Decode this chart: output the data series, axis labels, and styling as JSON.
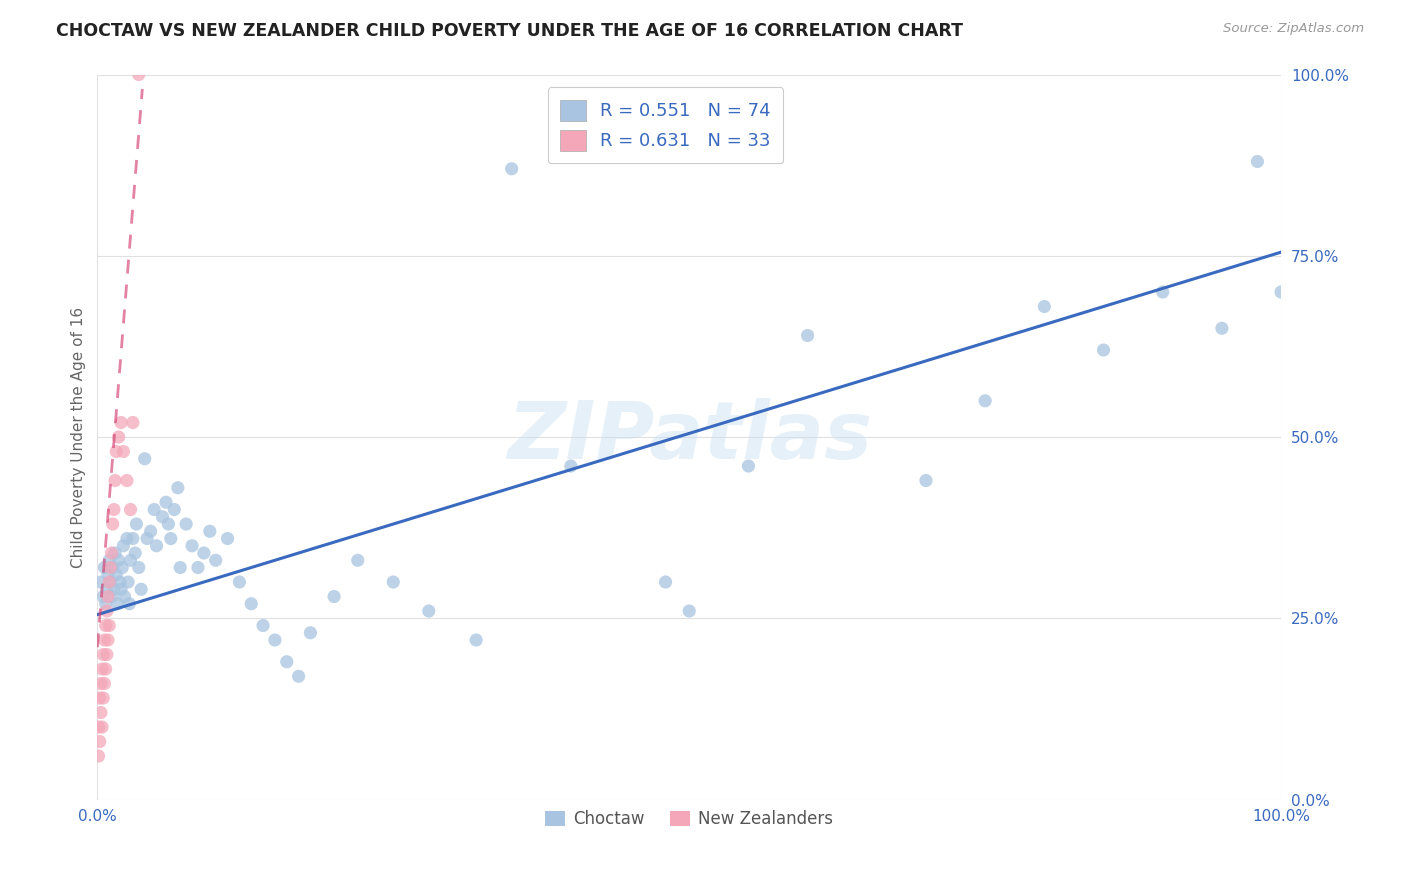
{
  "title": "CHOCTAW VS NEW ZEALANDER CHILD POVERTY UNDER THE AGE OF 16 CORRELATION CHART",
  "source": "Source: ZipAtlas.com",
  "ylabel": "Child Poverty Under the Age of 16",
  "watermark": "ZIPatlas",
  "choctaw_R": 0.551,
  "choctaw_N": 74,
  "nz_R": 0.631,
  "nz_N": 33,
  "choctaw_color": "#a8c4e0",
  "choctaw_line_color": "#3a6abf",
  "nz_color": "#f4a7b9",
  "nz_line_color": "#d44070",
  "background_color": "#ffffff",
  "grid_color": "#e0e0e0",
  "choctaw_x": [
    0.003,
    0.005,
    0.006,
    0.007,
    0.008,
    0.009,
    0.01,
    0.011,
    0.012,
    0.013,
    0.014,
    0.015,
    0.016,
    0.017,
    0.018,
    0.019,
    0.02,
    0.021,
    0.022,
    0.023,
    0.025,
    0.026,
    0.027,
    0.028,
    0.03,
    0.032,
    0.033,
    0.035,
    0.037,
    0.04,
    0.042,
    0.045,
    0.048,
    0.05,
    0.055,
    0.058,
    0.06,
    0.062,
    0.065,
    0.068,
    0.07,
    0.075,
    0.08,
    0.085,
    0.09,
    0.095,
    0.1,
    0.11,
    0.12,
    0.13,
    0.14,
    0.15,
    0.16,
    0.17,
    0.18,
    0.2,
    0.22,
    0.25,
    0.28,
    0.32,
    0.35,
    0.4,
    0.48,
    0.5,
    0.55,
    0.6,
    0.7,
    0.75,
    0.8,
    0.85,
    0.9,
    0.95,
    0.98,
    1.0
  ],
  "choctaw_y": [
    0.3,
    0.28,
    0.32,
    0.27,
    0.29,
    0.31,
    0.33,
    0.3,
    0.28,
    0.32,
    0.29,
    0.34,
    0.31,
    0.27,
    0.33,
    0.3,
    0.29,
    0.32,
    0.35,
    0.28,
    0.36,
    0.3,
    0.27,
    0.33,
    0.36,
    0.34,
    0.38,
    0.32,
    0.29,
    0.47,
    0.36,
    0.37,
    0.4,
    0.35,
    0.39,
    0.41,
    0.38,
    0.36,
    0.4,
    0.43,
    0.32,
    0.38,
    0.35,
    0.32,
    0.34,
    0.37,
    0.33,
    0.36,
    0.3,
    0.27,
    0.24,
    0.22,
    0.19,
    0.17,
    0.23,
    0.28,
    0.33,
    0.3,
    0.26,
    0.22,
    0.87,
    0.46,
    0.3,
    0.26,
    0.46,
    0.64,
    0.44,
    0.55,
    0.68,
    0.62,
    0.7,
    0.65,
    0.88,
    0.7
  ],
  "nz_x": [
    0.001,
    0.001,
    0.002,
    0.002,
    0.003,
    0.003,
    0.004,
    0.004,
    0.005,
    0.005,
    0.006,
    0.006,
    0.007,
    0.007,
    0.008,
    0.008,
    0.009,
    0.009,
    0.01,
    0.01,
    0.011,
    0.012,
    0.013,
    0.014,
    0.015,
    0.016,
    0.018,
    0.02,
    0.022,
    0.025,
    0.028,
    0.03,
    0.035
  ],
  "nz_y": [
    0.06,
    0.1,
    0.08,
    0.14,
    0.12,
    0.16,
    0.1,
    0.18,
    0.14,
    0.2,
    0.16,
    0.22,
    0.18,
    0.24,
    0.2,
    0.26,
    0.22,
    0.28,
    0.24,
    0.3,
    0.32,
    0.34,
    0.38,
    0.4,
    0.44,
    0.48,
    0.5,
    0.52,
    0.48,
    0.44,
    0.4,
    0.52,
    1.0
  ],
  "blue_line_x": [
    0.0,
    1.0
  ],
  "blue_line_y": [
    0.255,
    0.755
  ],
  "pink_line_x": [
    0.0,
    0.038
  ],
  "pink_line_y": [
    0.21,
    0.98
  ],
  "xlim": [
    0.0,
    1.0
  ],
  "ylim": [
    0.0,
    1.0
  ],
  "xticks": [
    0.0,
    1.0
  ],
  "yticks": [
    0.0,
    0.25,
    0.5,
    0.75,
    1.0
  ],
  "xtick_labels": [
    "0.0%",
    "100.0%"
  ],
  "ytick_labels": [
    "0.0%",
    "25.0%",
    "50.0%",
    "75.0%",
    "100.0%"
  ]
}
